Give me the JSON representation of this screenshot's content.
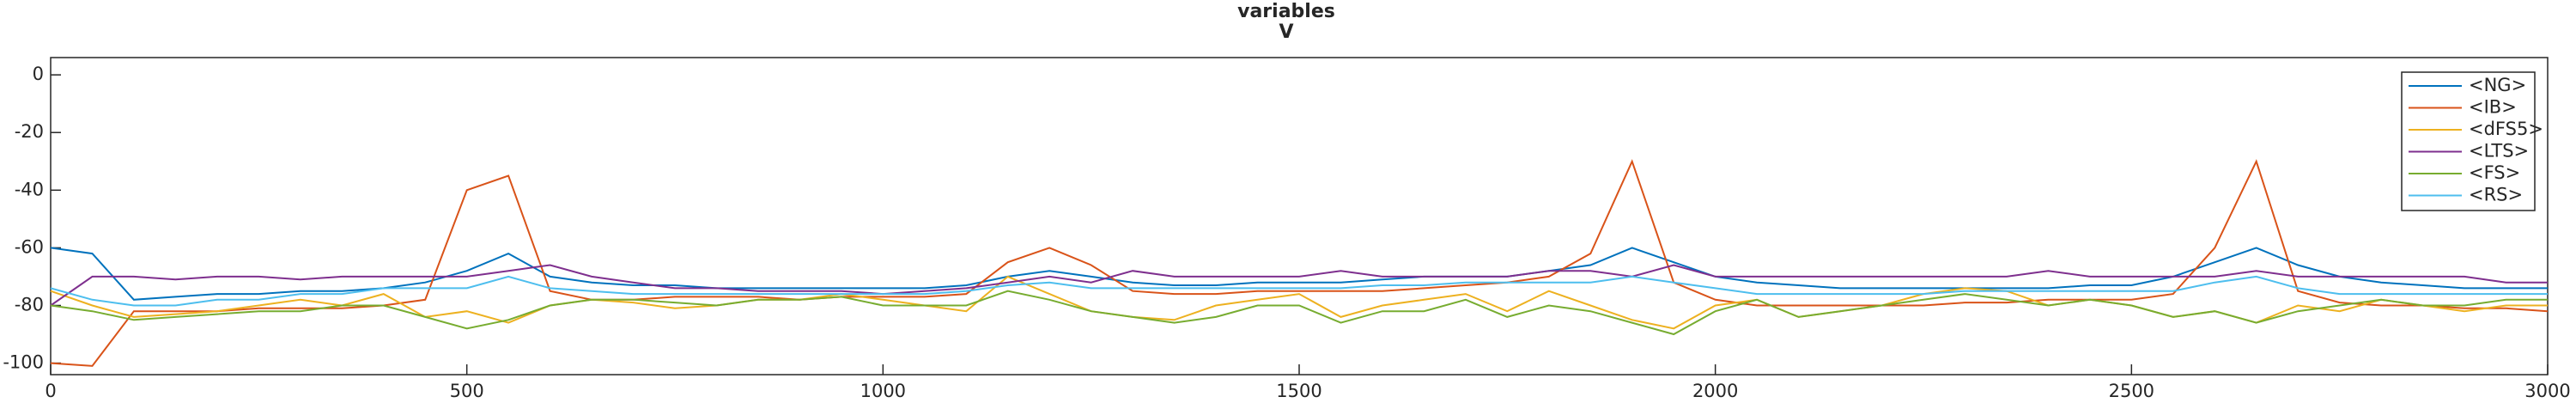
{
  "chart_data": {
    "type": "line",
    "title": "variables",
    "subtitle": "V",
    "x": [
      0,
      50,
      100,
      150,
      200,
      250,
      300,
      350,
      400,
      450,
      500,
      550,
      600,
      650,
      700,
      750,
      800,
      850,
      900,
      950,
      1000,
      1050,
      1100,
      1150,
      1200,
      1250,
      1300,
      1350,
      1400,
      1450,
      1500,
      1550,
      1600,
      1650,
      1700,
      1750,
      1800,
      1850,
      1900,
      1950,
      2000,
      2050,
      2100,
      2150,
      2200,
      2250,
      2300,
      2350,
      2400,
      2450,
      2500,
      2550,
      2600,
      2650,
      2700,
      2750,
      2800,
      2850,
      2900,
      2950,
      3000
    ],
    "series": [
      {
        "name": "<NG>",
        "color": "#0072BD",
        "values": [
          -60,
          -62,
          -78,
          -77,
          -76,
          -76,
          -75,
          -75,
          -74,
          -72,
          -68,
          -62,
          -70,
          -72,
          -73,
          -73,
          -74,
          -74,
          -74,
          -74,
          -74,
          -74,
          -73,
          -70,
          -68,
          -70,
          -72,
          -73,
          -73,
          -72,
          -72,
          -72,
          -71,
          -70,
          -70,
          -70,
          -68,
          -66,
          -60,
          -65,
          -70,
          -72,
          -73,
          -74,
          -74,
          -74,
          -74,
          -74,
          -74,
          -73,
          -73,
          -70,
          -65,
          -60,
          -66,
          -70,
          -72,
          -73,
          -74,
          -74,
          -74
        ]
      },
      {
        "name": "<IB>",
        "color": "#D95319",
        "values": [
          -100,
          -101,
          -82,
          -82,
          -82,
          -81,
          -81,
          -81,
          -80,
          -78,
          -40,
          -35,
          -75,
          -78,
          -78,
          -77,
          -77,
          -77,
          -78,
          -77,
          -77,
          -77,
          -76,
          -65,
          -60,
          -66,
          -75,
          -76,
          -76,
          -75,
          -75,
          -75,
          -75,
          -74,
          -73,
          -72,
          -70,
          -62,
          -30,
          -72,
          -78,
          -80,
          -80,
          -80,
          -80,
          -80,
          -79,
          -79,
          -78,
          -78,
          -78,
          -76,
          -60,
          -30,
          -75,
          -79,
          -80,
          -80,
          -81,
          -81,
          -82
        ]
      },
      {
        "name": "<dFS5>",
        "color": "#EDB120",
        "values": [
          -75,
          -80,
          -84,
          -83,
          -82,
          -80,
          -78,
          -80,
          -76,
          -84,
          -82,
          -86,
          -80,
          -78,
          -79,
          -81,
          -80,
          -78,
          -78,
          -76,
          -78,
          -80,
          -82,
          -70,
          -76,
          -82,
          -84,
          -85,
          -80,
          -78,
          -76,
          -84,
          -80,
          -78,
          -76,
          -82,
          -75,
          -80,
          -85,
          -88,
          -80,
          -78,
          -84,
          -82,
          -80,
          -76,
          -74,
          -75,
          -80,
          -78,
          -80,
          -84,
          -82,
          -86,
          -80,
          -82,
          -78,
          -80,
          -82,
          -80,
          -80
        ]
      },
      {
        "name": "<LTS>",
        "color": "#7E2F8E",
        "values": [
          -80,
          -70,
          -70,
          -71,
          -70,
          -70,
          -71,
          -70,
          -70,
          -70,
          -70,
          -68,
          -66,
          -70,
          -72,
          -74,
          -74,
          -75,
          -75,
          -75,
          -76,
          -75,
          -74,
          -72,
          -70,
          -72,
          -68,
          -70,
          -70,
          -70,
          -70,
          -68,
          -70,
          -70,
          -70,
          -70,
          -68,
          -68,
          -70,
          -66,
          -70,
          -70,
          -70,
          -70,
          -70,
          -70,
          -70,
          -70,
          -68,
          -70,
          -70,
          -70,
          -70,
          -68,
          -70,
          -70,
          -70,
          -70,
          -70,
          -72,
          -72
        ]
      },
      {
        "name": "<FS>",
        "color": "#77AC30",
        "values": [
          -80,
          -82,
          -85,
          -84,
          -83,
          -82,
          -82,
          -80,
          -80,
          -84,
          -88,
          -85,
          -80,
          -78,
          -78,
          -79,
          -80,
          -78,
          -78,
          -77,
          -80,
          -80,
          -80,
          -75,
          -78,
          -82,
          -84,
          -86,
          -84,
          -80,
          -80,
          -86,
          -82,
          -82,
          -78,
          -84,
          -80,
          -82,
          -86,
          -90,
          -82,
          -78,
          -84,
          -82,
          -80,
          -78,
          -76,
          -78,
          -80,
          -78,
          -80,
          -84,
          -82,
          -86,
          -82,
          -80,
          -78,
          -80,
          -80,
          -78,
          -78
        ]
      },
      {
        "name": "<RS>",
        "color": "#4DBEEE",
        "values": [
          -74,
          -78,
          -80,
          -80,
          -78,
          -78,
          -76,
          -76,
          -74,
          -74,
          -74,
          -70,
          -74,
          -75,
          -76,
          -76,
          -76,
          -76,
          -76,
          -76,
          -76,
          -76,
          -75,
          -73,
          -72,
          -74,
          -74,
          -74,
          -74,
          -74,
          -74,
          -74,
          -73,
          -73,
          -72,
          -72,
          -72,
          -72,
          -70,
          -72,
          -74,
          -76,
          -76,
          -76,
          -76,
          -76,
          -75,
          -75,
          -75,
          -75,
          -75,
          -75,
          -72,
          -70,
          -74,
          -76,
          -76,
          -76,
          -76,
          -76,
          -76
        ]
      }
    ],
    "xlim": [
      0,
      3000
    ],
    "xticks": [
      0,
      500,
      1000,
      1500,
      2000,
      2500,
      3000
    ],
    "ylim": [
      -104,
      6
    ],
    "yticks": [
      -100,
      -80,
      -60,
      -40,
      -20,
      0
    ],
    "legend": "top-right"
  }
}
